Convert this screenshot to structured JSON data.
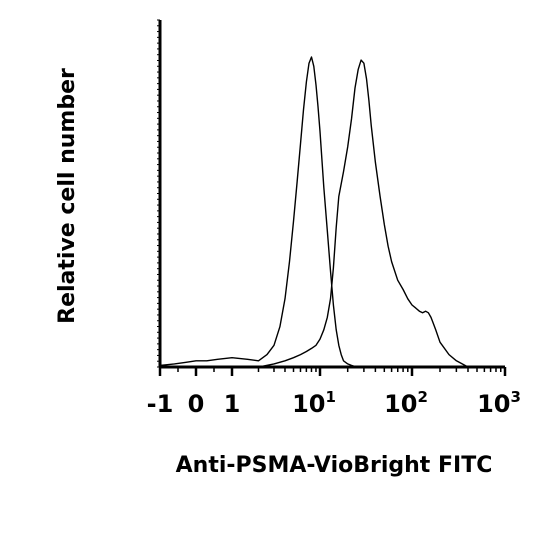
{
  "chart_data": {
    "type": "line",
    "title": "",
    "xlabel": "Anti-PSMA-VioBright FITC",
    "ylabel": "Relative cell number",
    "x_scale": "biexponential",
    "xlim": [
      -1,
      1000
    ],
    "ylim": [
      0,
      1
    ],
    "grid": false,
    "legend": "none",
    "x_ticks": [
      {
        "value": -1,
        "base": "-1",
        "exp": ""
      },
      {
        "value": 0,
        "base": "0",
        "exp": ""
      },
      {
        "value": 1,
        "base": "1",
        "exp": ""
      },
      {
        "value": 10,
        "base": "10",
        "exp": "1"
      },
      {
        "value": 100,
        "base": "10",
        "exp": "2"
      },
      {
        "value": 1000,
        "base": "10",
        "exp": "3"
      }
    ],
    "series": [
      {
        "line_color": "#000000",
        "x": [
          -1,
          -0.6,
          -0.3,
          0,
          0.3,
          0.6,
          1,
          1.5,
          2,
          2.5,
          3,
          3.5,
          4,
          4.5,
          5,
          5.5,
          6,
          6.5,
          7,
          7.5,
          8,
          8.5,
          9,
          9.5,
          10,
          10.5,
          11,
          12,
          13,
          14,
          15,
          16,
          17,
          18,
          20,
          22,
          25,
          28
        ],
        "y": [
          0.005,
          0.01,
          0.015,
          0.02,
          0.02,
          0.025,
          0.03,
          0.025,
          0.02,
          0.04,
          0.07,
          0.13,
          0.22,
          0.34,
          0.47,
          0.6,
          0.72,
          0.83,
          0.92,
          0.98,
          1.0,
          0.97,
          0.91,
          0.84,
          0.76,
          0.67,
          0.58,
          0.44,
          0.31,
          0.2,
          0.12,
          0.07,
          0.04,
          0.02,
          0.01,
          0.005,
          0.0,
          0.0
        ]
      },
      {
        "line_color": "#000000",
        "x": [
          2,
          3,
          4,
          5,
          6,
          7,
          8,
          9,
          10,
          11,
          12,
          13,
          14,
          15,
          16,
          18,
          20,
          22,
          24,
          26,
          28,
          30,
          32,
          34,
          36,
          40,
          45,
          50,
          55,
          60,
          70,
          80,
          90,
          100,
          110,
          120,
          130,
          140,
          150,
          160,
          170,
          180,
          200,
          250,
          300,
          400
        ],
        "y": [
          0.0,
          0.01,
          0.02,
          0.03,
          0.04,
          0.05,
          0.06,
          0.07,
          0.09,
          0.12,
          0.16,
          0.22,
          0.32,
          0.45,
          0.55,
          0.63,
          0.71,
          0.8,
          0.9,
          0.96,
          0.99,
          0.98,
          0.93,
          0.86,
          0.78,
          0.66,
          0.55,
          0.46,
          0.39,
          0.34,
          0.28,
          0.25,
          0.22,
          0.2,
          0.19,
          0.18,
          0.175,
          0.18,
          0.175,
          0.16,
          0.14,
          0.12,
          0.08,
          0.04,
          0.02,
          0.0
        ]
      }
    ]
  }
}
